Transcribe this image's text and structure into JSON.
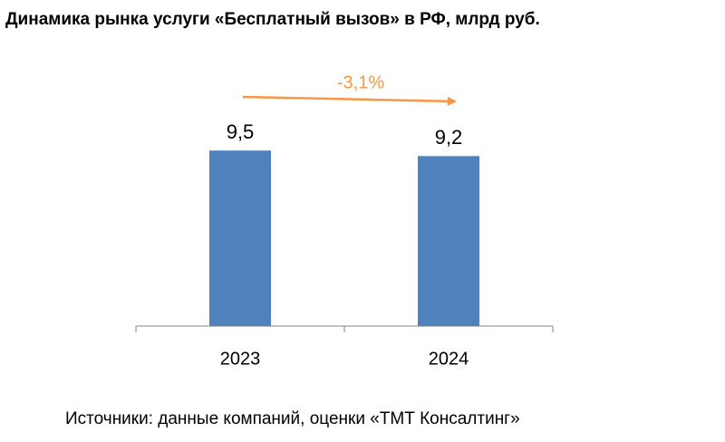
{
  "chart_data": {
    "type": "bar",
    "title": "Динамика рынка услуги «Бесплатный вызов» в РФ, млрд руб.",
    "categories": [
      "2023",
      "2024"
    ],
    "values": [
      9.5,
      9.2
    ],
    "value_labels": [
      "9,5",
      "9,2"
    ],
    "color": "#4f81bd",
    "ylim": [
      0,
      10
    ],
    "annotation": "-3,1%",
    "annotation_color": "#f79646",
    "source": "Источники: данные компаний, оценки «ТМТ Консалтинг»"
  }
}
